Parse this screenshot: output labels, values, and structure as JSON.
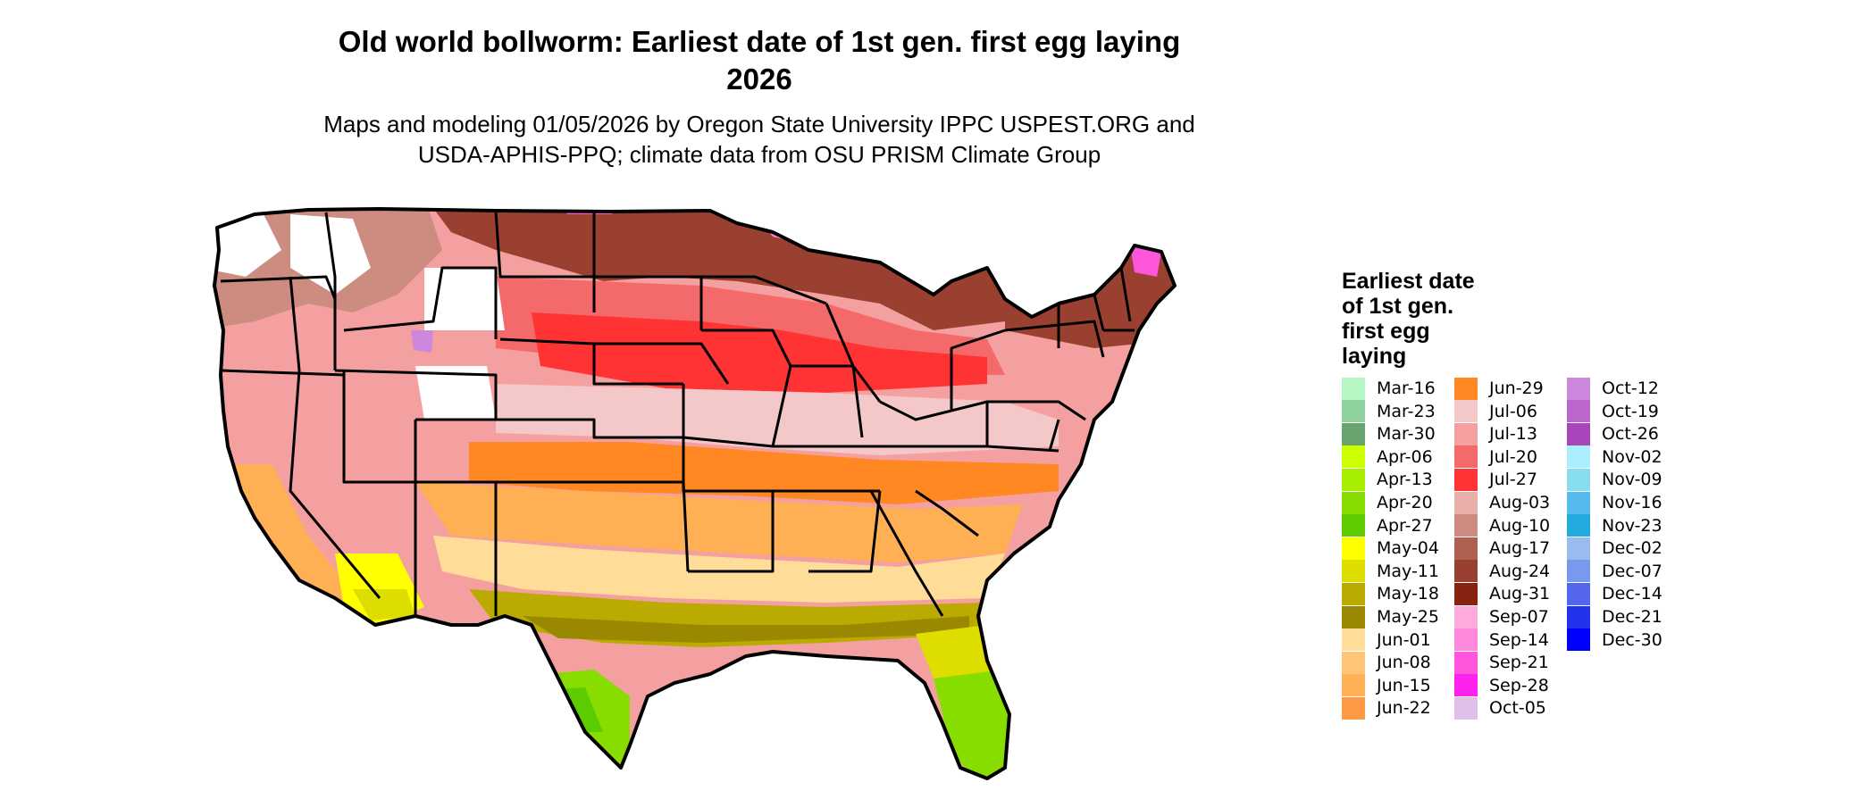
{
  "title_line1": "Old world bollworm: Earliest date of 1st gen. first egg laying",
  "title_line2": "2026",
  "subtitle_line1": "Maps and modeling 01/05/2026 by Oregon State University IPPC USPEST.ORG and",
  "subtitle_line2": "USDA-APHIS-PPQ; climate data from OSU PRISM Climate Group",
  "legend": {
    "title_lines": [
      "Earliest date",
      "of 1st gen.",
      "first egg",
      "laying"
    ],
    "items": [
      {
        "label": "Mar-16",
        "color": "#b6f5c4"
      },
      {
        "label": "Mar-23",
        "color": "#8fd19e"
      },
      {
        "label": "Mar-30",
        "color": "#66a36f"
      },
      {
        "label": "Apr-06",
        "color": "#ccff00"
      },
      {
        "label": "Apr-13",
        "color": "#a8ee00"
      },
      {
        "label": "Apr-20",
        "color": "#88dd00"
      },
      {
        "label": "Apr-27",
        "color": "#5ccc00"
      },
      {
        "label": "May-04",
        "color": "#ffff00"
      },
      {
        "label": "May-11",
        "color": "#dddd00"
      },
      {
        "label": "May-18",
        "color": "#bbaa00"
      },
      {
        "label": "May-25",
        "color": "#998800"
      },
      {
        "label": "Jun-01",
        "color": "#ffdd99"
      },
      {
        "label": "Jun-08",
        "color": "#ffc477"
      },
      {
        "label": "Jun-15",
        "color": "#ffb055"
      },
      {
        "label": "Jun-22",
        "color": "#ff9944"
      },
      {
        "label": "Jun-29",
        "color": "#ff8822"
      },
      {
        "label": "Jul-06",
        "color": "#f4c8c8"
      },
      {
        "label": "Jul-13",
        "color": "#f4a0a0"
      },
      {
        "label": "Jul-20",
        "color": "#f46a6a"
      },
      {
        "label": "Jul-27",
        "color": "#ff3333"
      },
      {
        "label": "Aug-03",
        "color": "#e8b0a8"
      },
      {
        "label": "Aug-10",
        "color": "#cc8c80"
      },
      {
        "label": "Aug-17",
        "color": "#b06050"
      },
      {
        "label": "Aug-24",
        "color": "#9a4030"
      },
      {
        "label": "Aug-31",
        "color": "#882211"
      },
      {
        "label": "Sep-07",
        "color": "#ffaadd"
      },
      {
        "label": "Sep-14",
        "color": "#ff88dd"
      },
      {
        "label": "Sep-21",
        "color": "#ff55dd"
      },
      {
        "label": "Sep-28",
        "color": "#ff22ee"
      },
      {
        "label": "Oct-05",
        "color": "#e0c0e8"
      },
      {
        "label": "Oct-12",
        "color": "#cc88dd"
      },
      {
        "label": "Oct-19",
        "color": "#bb66cc"
      },
      {
        "label": "Oct-26",
        "color": "#aa44bb"
      },
      {
        "label": "Nov-02",
        "color": "#aaeeff"
      },
      {
        "label": "Nov-09",
        "color": "#88ddee"
      },
      {
        "label": "Nov-16",
        "color": "#55bbee"
      },
      {
        "label": "Nov-23",
        "color": "#22aadd"
      },
      {
        "label": "Dec-02",
        "color": "#99bbee"
      },
      {
        "label": "Dec-07",
        "color": "#7799ee"
      },
      {
        "label": "Dec-14",
        "color": "#5566ee"
      },
      {
        "label": "Dec-21",
        "color": "#2233ee"
      },
      {
        "label": "Dec-30",
        "color": "#0000ff"
      }
    ]
  },
  "map": {
    "outline_color": "#000000",
    "no_data_color": "#ffffff",
    "zone_colors": {
      "north_brown": "#9a4030",
      "north_tan": "#cc8c80",
      "northern_red": "#f46a6a",
      "bright_red": "#ff3333",
      "pink_band": "#f4c8c8",
      "orange_band": "#ff8822",
      "light_orange": "#ffb055",
      "peach": "#ffdd99",
      "olive": "#bbaa00",
      "olive_dark": "#998800",
      "yellow": "#ffff00",
      "yellow_green": "#dddd00",
      "green": "#88dd00",
      "dark_green": "#5ccc00",
      "magenta_fringe": "#ff55dd",
      "violet_fringe": "#cc88dd"
    }
  }
}
